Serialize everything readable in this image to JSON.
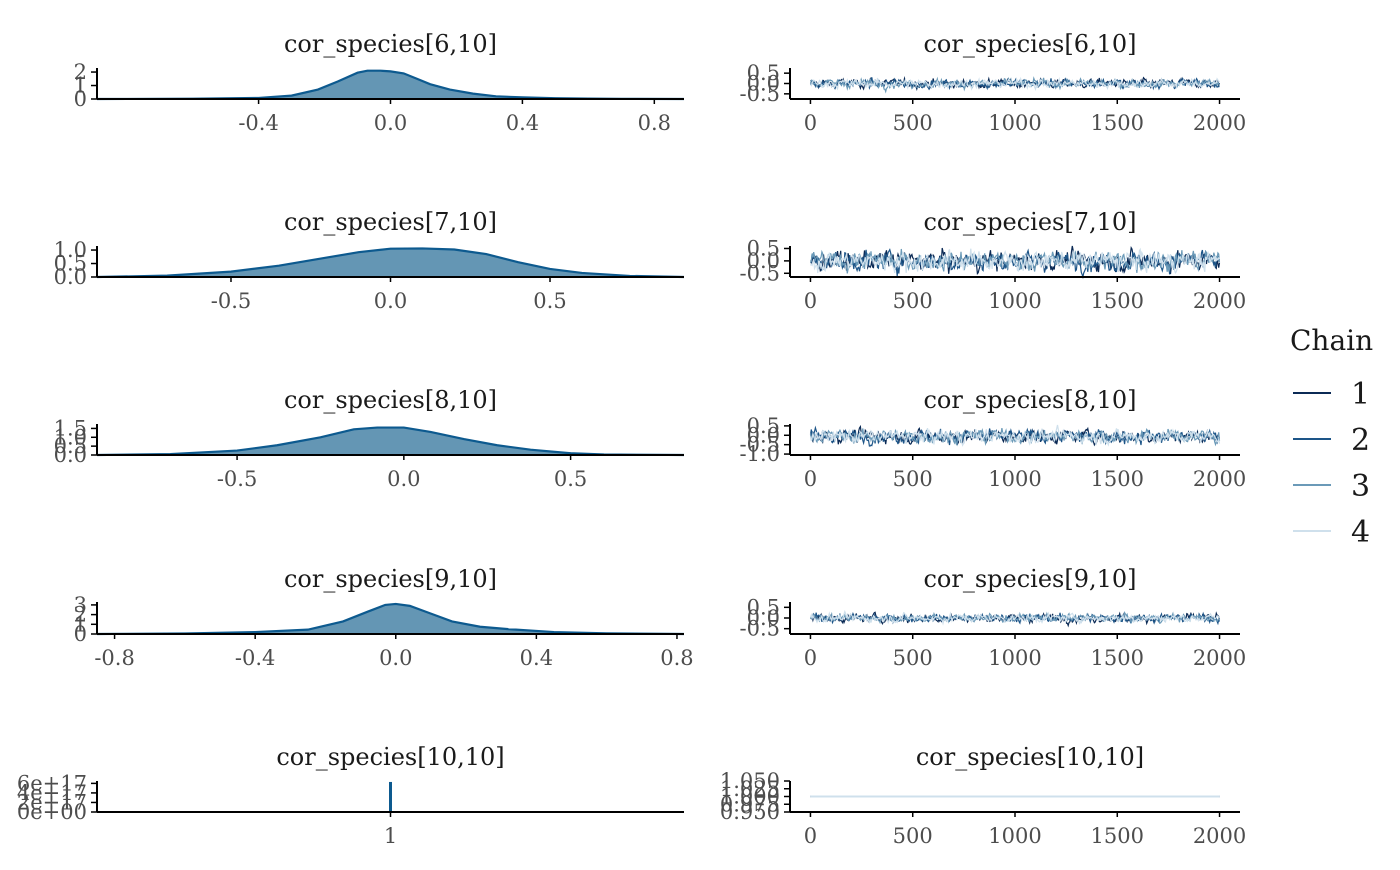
{
  "chart_data": [
    {
      "type": "area",
      "title": "cor_species[6,10]",
      "x_ticks": [
        "-0.4",
        "0.0",
        "0.4",
        "0.8"
      ],
      "x_tick_values": [
        -0.4,
        0.0,
        0.4,
        0.8
      ],
      "xlim": [
        -0.89,
        0.89
      ],
      "y_ticks": [
        "0",
        "1",
        "2"
      ],
      "y_tick_values": [
        0,
        1,
        2
      ],
      "ylim": [
        0,
        2.3
      ],
      "x": [
        -0.89,
        -0.6,
        -0.4,
        -0.3,
        -0.22,
        -0.16,
        -0.1,
        -0.07,
        -0.03,
        0.0,
        0.04,
        0.08,
        0.12,
        0.18,
        0.25,
        0.32,
        0.4,
        0.5,
        0.6,
        0.7,
        0.89
      ],
      "y": [
        0,
        0.02,
        0.08,
        0.25,
        0.7,
        1.3,
        1.95,
        2.1,
        2.1,
        2.05,
        1.9,
        1.5,
        1.1,
        0.7,
        0.4,
        0.2,
        0.12,
        0.06,
        0.03,
        0.01,
        0
      ]
    },
    {
      "type": "line",
      "title": "cor_species[6,10]",
      "x_ticks": [
        "0",
        "500",
        "1000",
        "1500",
        "2000"
      ],
      "x_tick_values": [
        0,
        500,
        1000,
        1500,
        2000
      ],
      "xlim": [
        -100,
        2100
      ],
      "y_ticks": [
        "-0.5",
        "0.0",
        "0.5"
      ],
      "y_tick_values": [
        -0.5,
        0.0,
        0.5
      ],
      "ylim": [
        -0.75,
        0.75
      ],
      "trace_center": 0.0,
      "trace_spread": 0.22,
      "series": [
        {
          "name": "1",
          "color": "#0b2a55"
        },
        {
          "name": "2",
          "color": "#1d5588"
        },
        {
          "name": "3",
          "color": "#6b9ab8"
        },
        {
          "name": "4",
          "color": "#cfe0ec"
        }
      ]
    },
    {
      "type": "area",
      "title": "cor_species[7,10]",
      "x_ticks": [
        "-0.5",
        "0.0",
        "0.5"
      ],
      "x_tick_values": [
        -0.5,
        0.0,
        0.5
      ],
      "xlim": [
        -0.92,
        0.92
      ],
      "y_ticks": [
        "0.0",
        "0.5",
        "1.0"
      ],
      "y_tick_values": [
        0.0,
        0.5,
        1.0
      ],
      "ylim": [
        0,
        1.15
      ],
      "x": [
        -0.92,
        -0.7,
        -0.5,
        -0.35,
        -0.2,
        -0.1,
        0.0,
        0.1,
        0.2,
        0.3,
        0.4,
        0.5,
        0.6,
        0.75,
        0.92
      ],
      "y": [
        0,
        0.05,
        0.2,
        0.42,
        0.72,
        0.92,
        1.05,
        1.06,
        1.02,
        0.85,
        0.55,
        0.3,
        0.15,
        0.04,
        0
      ]
    },
    {
      "type": "line",
      "title": "cor_species[7,10]",
      "x_ticks": [
        "0",
        "500",
        "1000",
        "1500",
        "2000"
      ],
      "x_tick_values": [
        0,
        500,
        1000,
        1500,
        2000
      ],
      "xlim": [
        -100,
        2100
      ],
      "y_ticks": [
        "-0.5",
        "0.0",
        "0.5"
      ],
      "y_tick_values": [
        -0.5,
        0.0,
        0.5
      ],
      "ylim": [
        -0.65,
        0.6
      ],
      "trace_center": 0.0,
      "trace_spread": 0.42,
      "series": [
        {
          "name": "1",
          "color": "#0b2a55"
        },
        {
          "name": "2",
          "color": "#1d5588"
        },
        {
          "name": "3",
          "color": "#6b9ab8"
        },
        {
          "name": "4",
          "color": "#cfe0ec"
        }
      ]
    },
    {
      "type": "area",
      "title": "cor_species[8,10]",
      "x_ticks": [
        "-0.5",
        "0.0",
        "0.5"
      ],
      "x_tick_values": [
        -0.5,
        0.0,
        0.5
      ],
      "xlim": [
        -0.92,
        0.84
      ],
      "y_ticks": [
        "0.0",
        "0.5",
        "1.0",
        "1.5"
      ],
      "y_tick_values": [
        0.0,
        0.5,
        1.0,
        1.5
      ],
      "ylim": [
        0,
        1.75
      ],
      "x": [
        -0.92,
        -0.7,
        -0.5,
        -0.38,
        -0.25,
        -0.15,
        -0.08,
        0.0,
        0.08,
        0.18,
        0.28,
        0.38,
        0.5,
        0.6,
        0.84
      ],
      "y": [
        0,
        0.05,
        0.25,
        0.55,
        1.0,
        1.45,
        1.55,
        1.55,
        1.3,
        0.9,
        0.55,
        0.3,
        0.1,
        0.03,
        0
      ]
    },
    {
      "type": "line",
      "title": "cor_species[8,10]",
      "x_ticks": [
        "0",
        "500",
        "1000",
        "1500",
        "2000"
      ],
      "x_tick_values": [
        0,
        500,
        1000,
        1500,
        2000
      ],
      "xlim": [
        -100,
        2100
      ],
      "y_ticks": [
        "-1.0",
        "-0.5",
        "0.0",
        "0.5"
      ],
      "y_tick_values": [
        -1.0,
        -0.5,
        0.0,
        0.5
      ],
      "ylim": [
        -1.05,
        0.6
      ],
      "trace_center": -0.05,
      "trace_spread": 0.38,
      "series": [
        {
          "name": "1",
          "color": "#0b2a55"
        },
        {
          "name": "2",
          "color": "#1d5588"
        },
        {
          "name": "3",
          "color": "#6b9ab8"
        },
        {
          "name": "4",
          "color": "#cfe0ec"
        }
      ]
    },
    {
      "type": "area",
      "title": "cor_species[9,10]",
      "x_ticks": [
        "-0.8",
        "-0.4",
        "0.0",
        "0.4",
        "0.8"
      ],
      "x_tick_values": [
        -0.8,
        -0.4,
        0.0,
        0.4,
        0.8
      ],
      "xlim": [
        -0.85,
        0.82
      ],
      "y_ticks": [
        "0",
        "1",
        "2",
        "3"
      ],
      "y_tick_values": [
        0,
        1,
        2,
        3
      ],
      "ylim": [
        0,
        3.3
      ],
      "x": [
        -0.85,
        -0.6,
        -0.4,
        -0.25,
        -0.15,
        -0.08,
        -0.03,
        0.0,
        0.04,
        0.1,
        0.16,
        0.24,
        0.32,
        0.45,
        0.6,
        0.82
      ],
      "y": [
        0,
        0.05,
        0.2,
        0.45,
        1.3,
        2.3,
        3.0,
        3.1,
        2.9,
        2.1,
        1.3,
        0.75,
        0.5,
        0.2,
        0.07,
        0
      ]
    },
    {
      "type": "line",
      "title": "cor_species[9,10]",
      "x_ticks": [
        "0",
        "500",
        "1000",
        "1500",
        "2000"
      ],
      "x_tick_values": [
        0,
        500,
        1000,
        1500,
        2000
      ],
      "xlim": [
        -100,
        2100
      ],
      "y_ticks": [
        "-0.5",
        "0.0",
        "0.5"
      ],
      "y_tick_values": [
        -0.5,
        0.0,
        0.5
      ],
      "ylim": [
        -0.75,
        0.75
      ],
      "trace_center": 0.0,
      "trace_spread": 0.2,
      "series": [
        {
          "name": "1",
          "color": "#0b2a55"
        },
        {
          "name": "2",
          "color": "#1d5588"
        },
        {
          "name": "3",
          "color": "#6b9ab8"
        },
        {
          "name": "4",
          "color": "#cfe0ec"
        }
      ]
    },
    {
      "type": "area",
      "title": "cor_species[10,10]",
      "x_ticks": [
        "1"
      ],
      "x_tick_values": [
        1
      ],
      "xlim": [
        0.5,
        1.5
      ],
      "y_ticks": [
        "0e+00",
        "2e+17",
        "4e+17",
        "6e+17"
      ],
      "y_tick_values": [
        0,
        2,
        4,
        6
      ],
      "ylim": [
        0,
        6.5
      ],
      "spike_x": 1,
      "spike_top": 6.3
    },
    {
      "type": "line",
      "title": "cor_species[10,10]",
      "x_ticks": [
        "0",
        "500",
        "1000",
        "1500",
        "2000"
      ],
      "x_tick_values": [
        0,
        500,
        1000,
        1500,
        2000
      ],
      "xlim": [
        -100,
        2100
      ],
      "y_ticks": [
        "0.950",
        "0.975",
        "1.000",
        "1.025",
        "1.050"
      ],
      "y_tick_values": [
        0.95,
        0.975,
        1.0,
        1.025,
        1.05
      ],
      "ylim": [
        0.95,
        1.05
      ],
      "constant_value": 1.0,
      "series": [
        {
          "name": "1",
          "color": "#0b2a55"
        },
        {
          "name": "2",
          "color": "#1d5588"
        },
        {
          "name": "3",
          "color": "#6b9ab8"
        },
        {
          "name": "4",
          "color": "#cfe0ec"
        }
      ]
    }
  ],
  "legend": {
    "title": "Chain",
    "position": "right",
    "entries": [
      {
        "label": "1",
        "color": "#0b2a55"
      },
      {
        "label": "2",
        "color": "#1d5588"
      },
      {
        "label": "3",
        "color": "#6b9ab8"
      },
      {
        "label": "4",
        "color": "#cfe0ec"
      }
    ]
  },
  "colors": {
    "density_fill": "#6496b4",
    "density_line": "#0d5a8f",
    "axis": "#000000",
    "tick_text": "#4d4d4d"
  }
}
